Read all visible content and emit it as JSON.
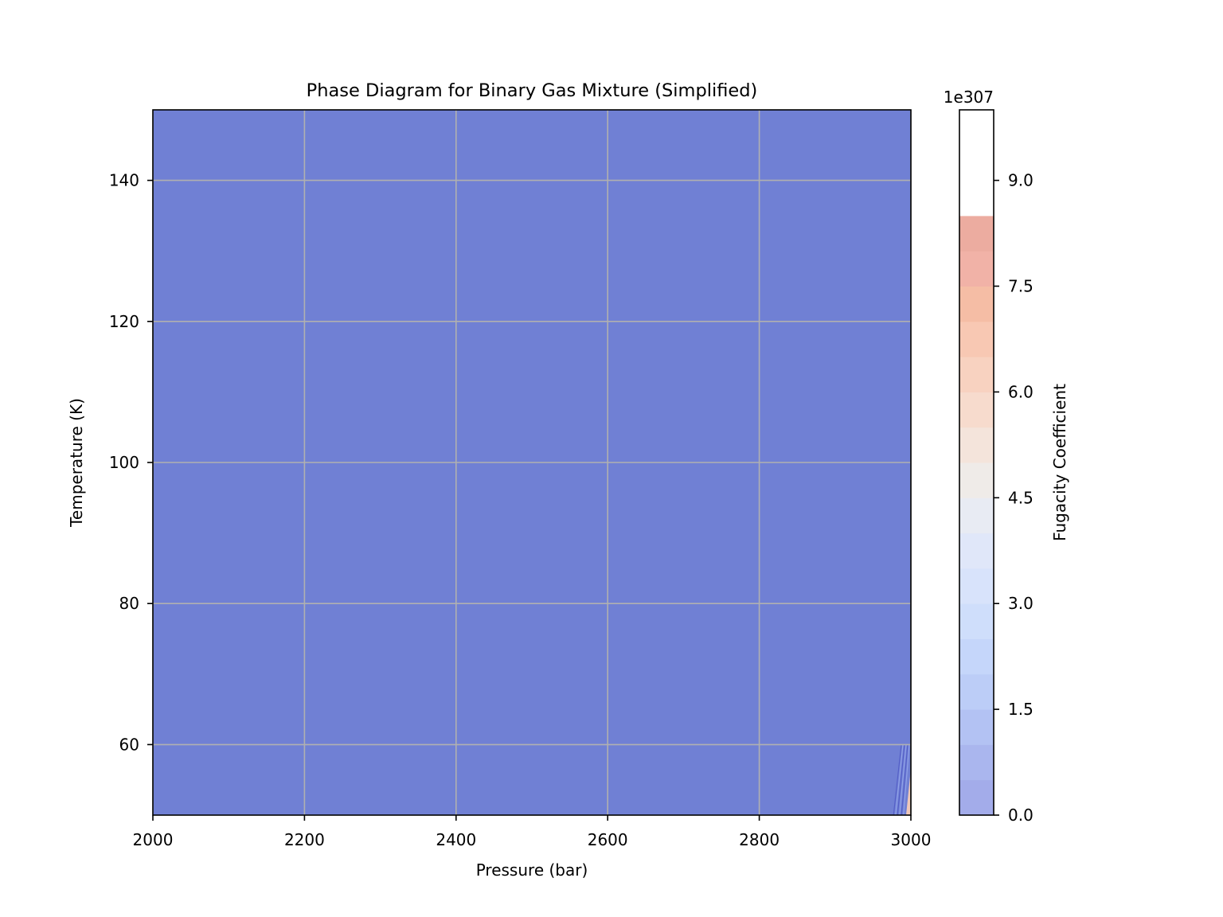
{
  "chart_data": {
    "type": "heatmap",
    "subtype": "filled-contour",
    "title": "Phase Diagram for Binary Gas Mixture (Simplified)",
    "xlabel": "Pressure (bar)",
    "ylabel": "Temperature (K)",
    "xlim": [
      2000,
      3000
    ],
    "ylim": [
      50,
      150
    ],
    "xticks": [
      2000,
      2200,
      2400,
      2600,
      2800,
      3000
    ],
    "xtick_labels": [
      "2000",
      "2200",
      "2400",
      "2600",
      "2800",
      "3000"
    ],
    "yticks": [
      60,
      80,
      100,
      120,
      140
    ],
    "ytick_labels": [
      "60",
      "80",
      "100",
      "120",
      "140"
    ],
    "grid": true,
    "colormap": "coolwarm",
    "fill_alpha": 0.7,
    "dominant_level_color": "#7080d4",
    "colorbar": {
      "label": "Fugacity Coefficient",
      "offset_text": "1e307",
      "range": [
        0,
        10
      ],
      "scale_exponent": 307,
      "ticks": [
        0,
        1.5,
        3.0,
        4.5,
        6.0,
        7.5,
        9.0
      ],
      "tick_labels": [
        "0.0",
        "1.5",
        "3.0",
        "4.5",
        "6.0",
        "7.5",
        "9.0"
      ],
      "level_step": 0.5,
      "level_colors": [
        "#a3acea",
        "#aab6ee",
        "#b3c2f3",
        "#bccdf7",
        "#c5d6fa",
        "#cfdefb",
        "#d8e3fb",
        "#e0e7f9",
        "#e8ebf3",
        "#efebe8",
        "#f4e4db",
        "#f7dbcd",
        "#f8d2c0",
        "#f8c8b3",
        "#f5bda5",
        "#f1b2a7",
        "#ecaca0",
        "#ffffff",
        "#ffffff",
        "#ffffff"
      ]
    },
    "anomaly_region": {
      "description_values": {
        "x": [
          2975,
          3000
        ],
        "y": [
          50,
          60
        ]
      },
      "colors": [
        "#5560c8",
        "#8fa0e8",
        "#f0c8b8"
      ]
    }
  }
}
